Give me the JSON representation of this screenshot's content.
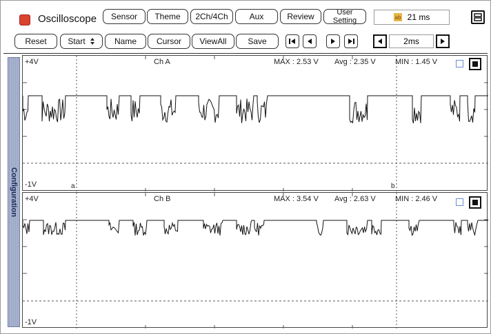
{
  "app": {
    "title": "Oscilloscope"
  },
  "toolbar_top": {
    "sensor": "Sensor",
    "theme": "Theme",
    "channels": "2Ch/4Ch",
    "aux": "Aux",
    "review": "Review",
    "user_setting": "User Setting",
    "time_readout": "21 ms"
  },
  "toolbar_bottom": {
    "reset": "Reset",
    "start": "Start",
    "name": "Name",
    "cursor": "Cursor",
    "viewall": "ViewAll",
    "save": "Save",
    "timebase": "2ms"
  },
  "sidebar": {
    "label": "Configuration"
  },
  "channels": [
    {
      "name": "Ch A",
      "top_label": "+4V",
      "bottom_label": "-1V",
      "max": "MAX : 2.53 V",
      "avg": "Avg : 2.35 V",
      "min": "MIN : 1.45 V",
      "cursor_a": "a",
      "cursor_b": "b"
    },
    {
      "name": "Ch B",
      "top_label": "+4V",
      "bottom_label": "-1V",
      "max": "MAX : 3.54 V",
      "avg": "Avg : 2.63 V",
      "min": "MIN : 2.46 V"
    }
  ],
  "icons": {
    "app": "oscilloscope-app-icon",
    "time": "ab-timer-icon",
    "menu": "layout-menu-icon"
  },
  "colors": {
    "app_icon": "#d9442e",
    "sidebar": "#9aa7c6",
    "checkbox": "#6a8ad8"
  }
}
